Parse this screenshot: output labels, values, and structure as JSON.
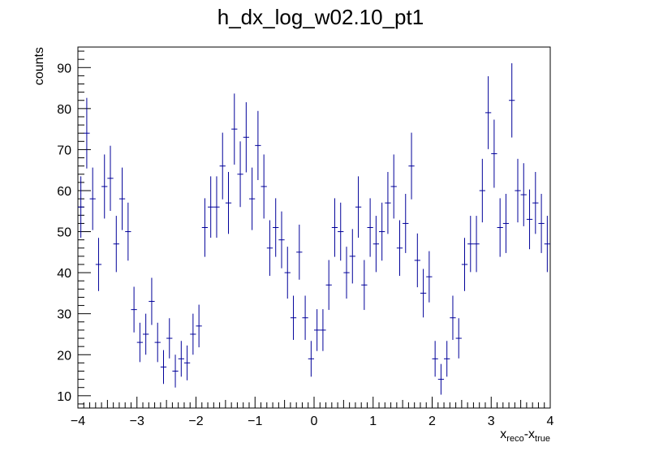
{
  "chart_data": {
    "type": "scatter",
    "title": "h_dx_log_w02.10_pt1",
    "xlabel": {
      "main": "x",
      "sub1": "reco",
      "mid": "-x",
      "sub2": "true"
    },
    "ylabel": "counts",
    "xlim": [
      -4,
      4
    ],
    "ylim": [
      7,
      95
    ],
    "bin_width": 0.1,
    "x_major_ticks": [
      -4,
      -3,
      -2,
      -1,
      0,
      1,
      2,
      3,
      4
    ],
    "x_tick_labels": [
      "−4",
      "−3",
      "−2",
      "−1",
      "0",
      "1",
      "2",
      "3",
      "4"
    ],
    "y_major_ticks": [
      10,
      20,
      30,
      40,
      50,
      60,
      70,
      80,
      90
    ],
    "y_tick_labels": [
      "10",
      "20",
      "30",
      "40",
      "50",
      "60",
      "70",
      "80",
      "90"
    ],
    "grid": false,
    "colors": {
      "series": "#000099",
      "axis": "#000000"
    },
    "series": [
      {
        "x": [
          -3.95,
          -3.85,
          -3.75,
          -3.65,
          -3.55,
          -3.45,
          -3.35,
          -3.25,
          -3.15,
          -3.05,
          -2.95,
          -2.85,
          -2.75,
          -2.65,
          -2.55,
          -2.45,
          -2.35,
          -2.25,
          -2.15,
          -2.05,
          -1.95,
          -1.85,
          -1.75,
          -1.65,
          -1.55,
          -1.45,
          -1.35,
          -1.25,
          -1.15,
          -1.05,
          -0.95,
          -0.85,
          -0.75,
          -0.65,
          -0.55,
          -0.45,
          -0.35,
          -0.25,
          -0.15,
          -0.05,
          0.05,
          0.15,
          0.25,
          0.35,
          0.45,
          0.55,
          0.65,
          0.75,
          0.85,
          0.95,
          1.05,
          1.15,
          1.25,
          1.35,
          1.45,
          1.55,
          1.65,
          1.75,
          1.85,
          1.95,
          2.05,
          2.15,
          2.25,
          2.35,
          2.45,
          2.55,
          2.65,
          2.75,
          2.85,
          2.95,
          3.05,
          3.15,
          3.25,
          3.35,
          3.45,
          3.55,
          3.65,
          3.75,
          3.85,
          3.95
        ],
        "y": [
          56,
          74,
          58,
          42,
          61,
          63,
          47,
          58,
          50,
          31,
          23,
          25,
          33,
          23,
          17,
          24,
          16,
          19,
          18,
          25,
          27,
          51,
          56,
          56,
          66,
          57,
          75,
          64,
          73,
          58,
          71,
          61,
          46,
          51,
          48,
          40,
          29,
          45,
          29,
          19,
          26,
          26,
          37,
          51,
          50,
          40,
          44,
          56,
          37,
          51,
          47,
          50,
          57,
          61,
          46,
          52,
          66,
          43,
          35,
          39,
          19,
          14,
          19,
          29,
          24,
          42,
          47,
          47,
          60,
          79,
          69,
          51,
          52,
          82,
          60,
          59,
          53,
          57,
          52,
          47
        ]
      }
    ]
  }
}
